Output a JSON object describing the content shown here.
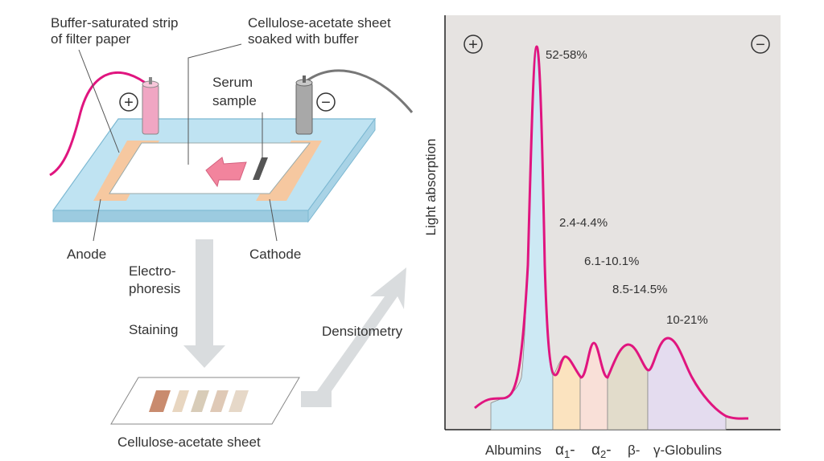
{
  "apparatus": {
    "strip_label_line1": "Buffer-saturated strip",
    "strip_label_line2": "of filter paper",
    "sheet_label_line1": "Cellulose-acetate sheet",
    "sheet_label_line2": "soaked with buffer",
    "serum_label_line1": "Serum",
    "serum_label_line2": "sample",
    "anode_label": "Anode",
    "cathode_label": "Cathode",
    "plus_symbol": "+",
    "minus_symbol": "−"
  },
  "process": {
    "electrophoresis_line1": "Electro-",
    "electrophoresis_line2": "phoresis",
    "staining": "Staining",
    "densitometry": "Densitometry",
    "sheet_caption": "Cellulose-acetate sheet"
  },
  "densitogram": {
    "ylabel": "Light absorption",
    "plus_symbol": "+",
    "minus_symbol": "−",
    "fractions": [
      {
        "percent": "52-58%",
        "color": "#cde9f4"
      },
      {
        "percent": "2.4-4.4%",
        "color": "#fbe3bf"
      },
      {
        "percent": "6.1-10.1%",
        "color": "#f9e0d8"
      },
      {
        "percent": "8.5-14.5%",
        "color": "#e2dccb"
      },
      {
        "percent": "10-21%",
        "color": "#e4dcef"
      }
    ],
    "axis_labels": {
      "albumins": "Albumins",
      "alpha1_symbol": "α",
      "alpha1_sub": "1",
      "alpha1_dash": "-",
      "alpha2_symbol": "α",
      "alpha2_sub": "2",
      "alpha2_dash": "-",
      "beta": "β-",
      "gamma": "γ-Globulins"
    },
    "curve_color": "#e0157f",
    "panel_color": "#e6e3e1"
  }
}
